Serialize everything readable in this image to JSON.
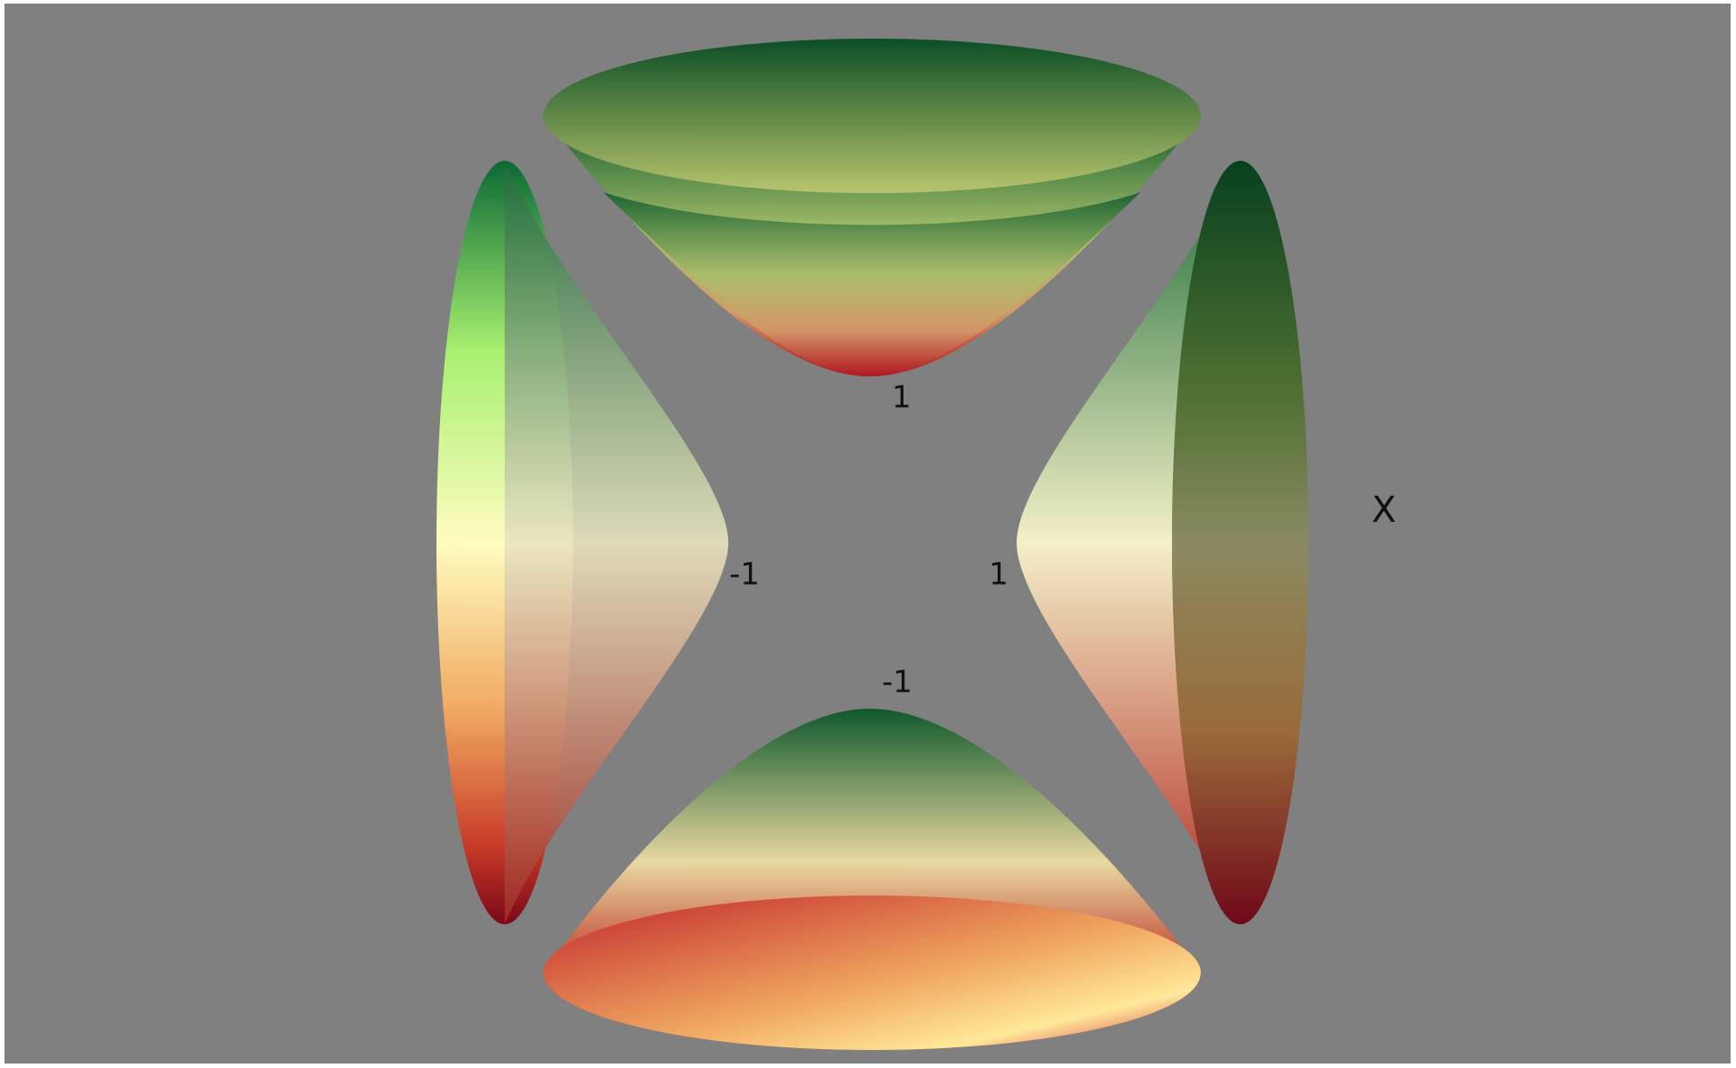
{
  "scene": {
    "axis_label": "X",
    "tick_labels": {
      "top": "1",
      "left": "-1",
      "right": "1",
      "bottom": "-1"
    }
  }
}
